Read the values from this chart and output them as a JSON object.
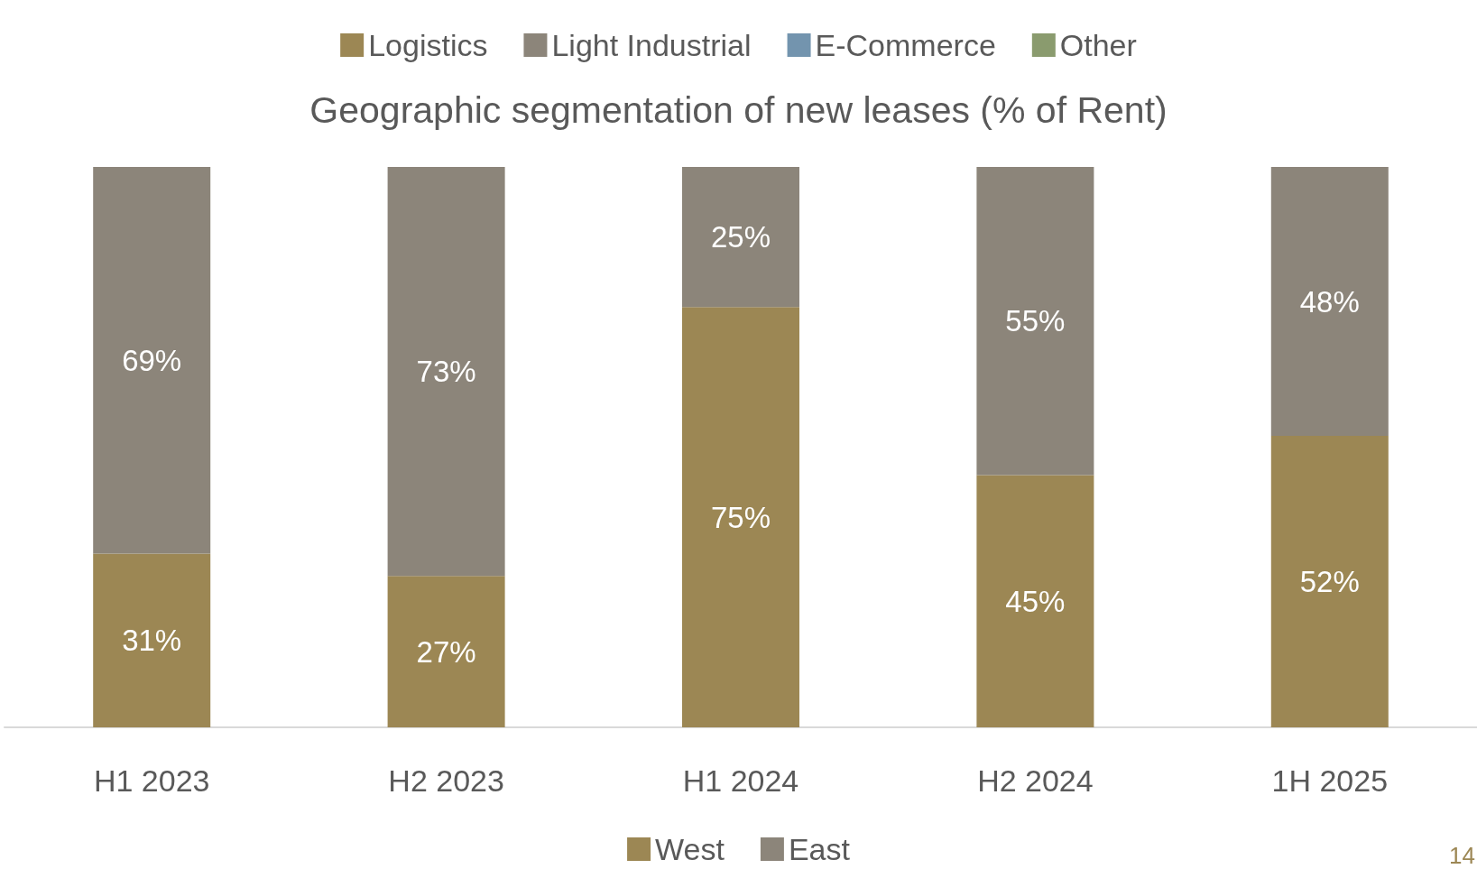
{
  "chart_data": {
    "type": "bar",
    "title": "Geographic segmentation of new leases (% of Rent)",
    "categories": [
      "H1 2023",
      "H2 2023",
      "H1 2024",
      "H2 2024",
      "1H 2025"
    ],
    "series": [
      {
        "name": "West",
        "color": "#9c8754",
        "values": [
          31,
          27,
          75,
          45,
          52
        ],
        "value_labels": [
          "31%",
          "27%",
          "75%",
          "45%",
          "52%"
        ]
      },
      {
        "name": "East",
        "color": "#8c857a",
        "values": [
          69,
          73,
          25,
          55,
          48
        ],
        "value_labels": [
          "69%",
          "73%",
          "25%",
          "55%",
          "48%"
        ]
      },
      {
        "name": "Logistics",
        "color": "#9c8754",
        "values": [
          null,
          null,
          null,
          null,
          null
        ]
      },
      {
        "name": "Light Industrial",
        "color": "#8c857a",
        "values": [
          null,
          null,
          null,
          null,
          null
        ]
      },
      {
        "name": "E-Commerce",
        "color": "#7394ae",
        "values": [
          null,
          null,
          null,
          null,
          null
        ]
      },
      {
        "name": "Other",
        "color": "#8a9b6e",
        "values": [
          null,
          null,
          null,
          null,
          null
        ]
      }
    ],
    "stacked": true,
    "legend": "bottom",
    "grid": false,
    "annotations": [
      "14"
    ]
  }
}
